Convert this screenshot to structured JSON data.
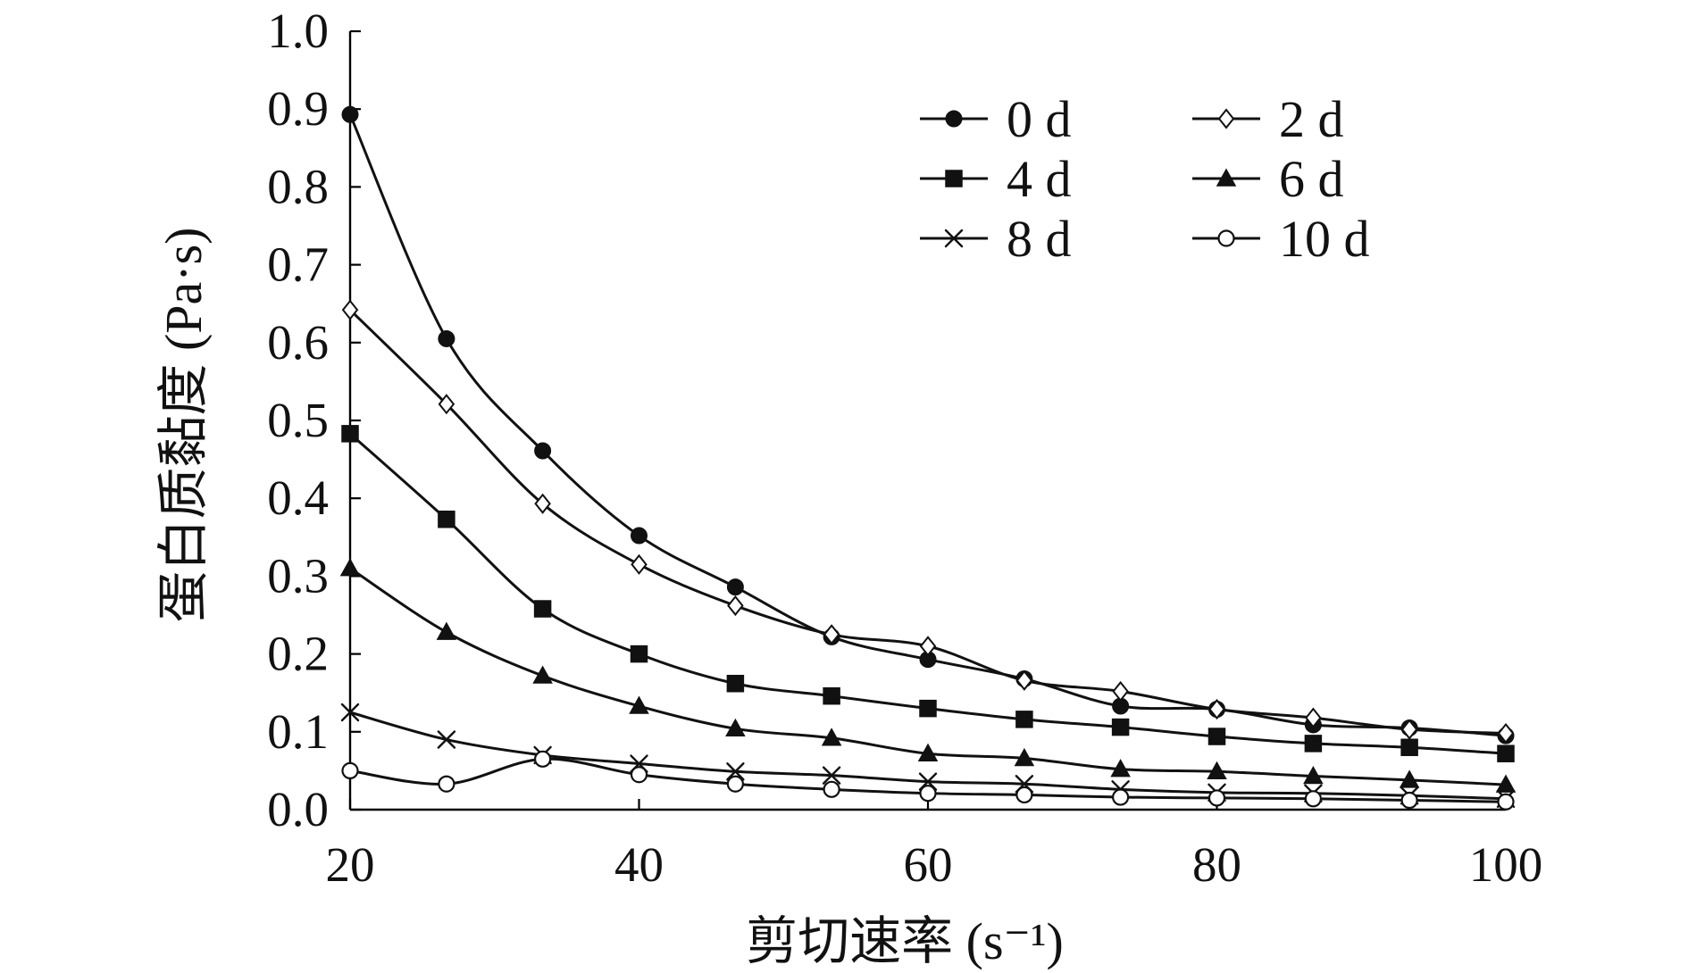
{
  "chart_data": {
    "type": "line",
    "x": [
      20,
      26.67,
      33.33,
      40,
      46.67,
      53.33,
      60,
      66.67,
      73.33,
      80,
      86.67,
      93.33,
      100
    ],
    "xlabel": "剪切速率 (s⁻¹)",
    "ylabel": "蛋白质黏度 (Pa·s)",
    "xlim": [
      20,
      100
    ],
    "ylim": [
      0.0,
      1.0
    ],
    "x_ticks": [
      20,
      40,
      60,
      80,
      100
    ],
    "x_tick_labels": [
      "20",
      "40",
      "60",
      "80",
      "100"
    ],
    "y_ticks": [
      0.0,
      0.1,
      0.2,
      0.3,
      0.4,
      0.5,
      0.6,
      0.7,
      0.8,
      0.9,
      1.0
    ],
    "y_tick_labels": [
      "0.0",
      "0.1",
      "0.2",
      "0.3",
      "0.4",
      "0.5",
      "0.6",
      "0.7",
      "0.8",
      "0.9",
      "1.0"
    ],
    "grid": false,
    "legend": {
      "position": "top-right",
      "columns": 2
    },
    "series": [
      {
        "name": "0 d",
        "marker": "filled-circle",
        "values": [
          0.893,
          0.605,
          0.461,
          0.352,
          0.286,
          0.222,
          0.193,
          0.168,
          0.133,
          0.129,
          0.109,
          0.105,
          0.095
        ]
      },
      {
        "name": "2 d",
        "marker": "open-diamond",
        "values": [
          0.642,
          0.521,
          0.393,
          0.315,
          0.262,
          0.225,
          0.21,
          0.166,
          0.152,
          0.129,
          0.118,
          0.103,
          0.098
        ]
      },
      {
        "name": "4 d",
        "marker": "filled-square",
        "values": [
          0.483,
          0.373,
          0.258,
          0.2,
          0.162,
          0.146,
          0.13,
          0.116,
          0.106,
          0.094,
          0.085,
          0.08,
          0.072
        ]
      },
      {
        "name": "6 d",
        "marker": "filled-triangle",
        "values": [
          0.31,
          0.228,
          0.172,
          0.133,
          0.104,
          0.092,
          0.072,
          0.066,
          0.052,
          0.049,
          0.043,
          0.038,
          0.032
        ]
      },
      {
        "name": "8 d",
        "marker": "x-mark",
        "values": [
          0.125,
          0.09,
          0.07,
          0.059,
          0.049,
          0.044,
          0.036,
          0.033,
          0.026,
          0.022,
          0.021,
          0.018,
          0.014
        ]
      },
      {
        "name": "10 d",
        "marker": "open-circle",
        "values": [
          0.05,
          0.033,
          0.065,
          0.045,
          0.033,
          0.026,
          0.021,
          0.019,
          0.016,
          0.015,
          0.014,
          0.012,
          0.01
        ]
      }
    ]
  }
}
